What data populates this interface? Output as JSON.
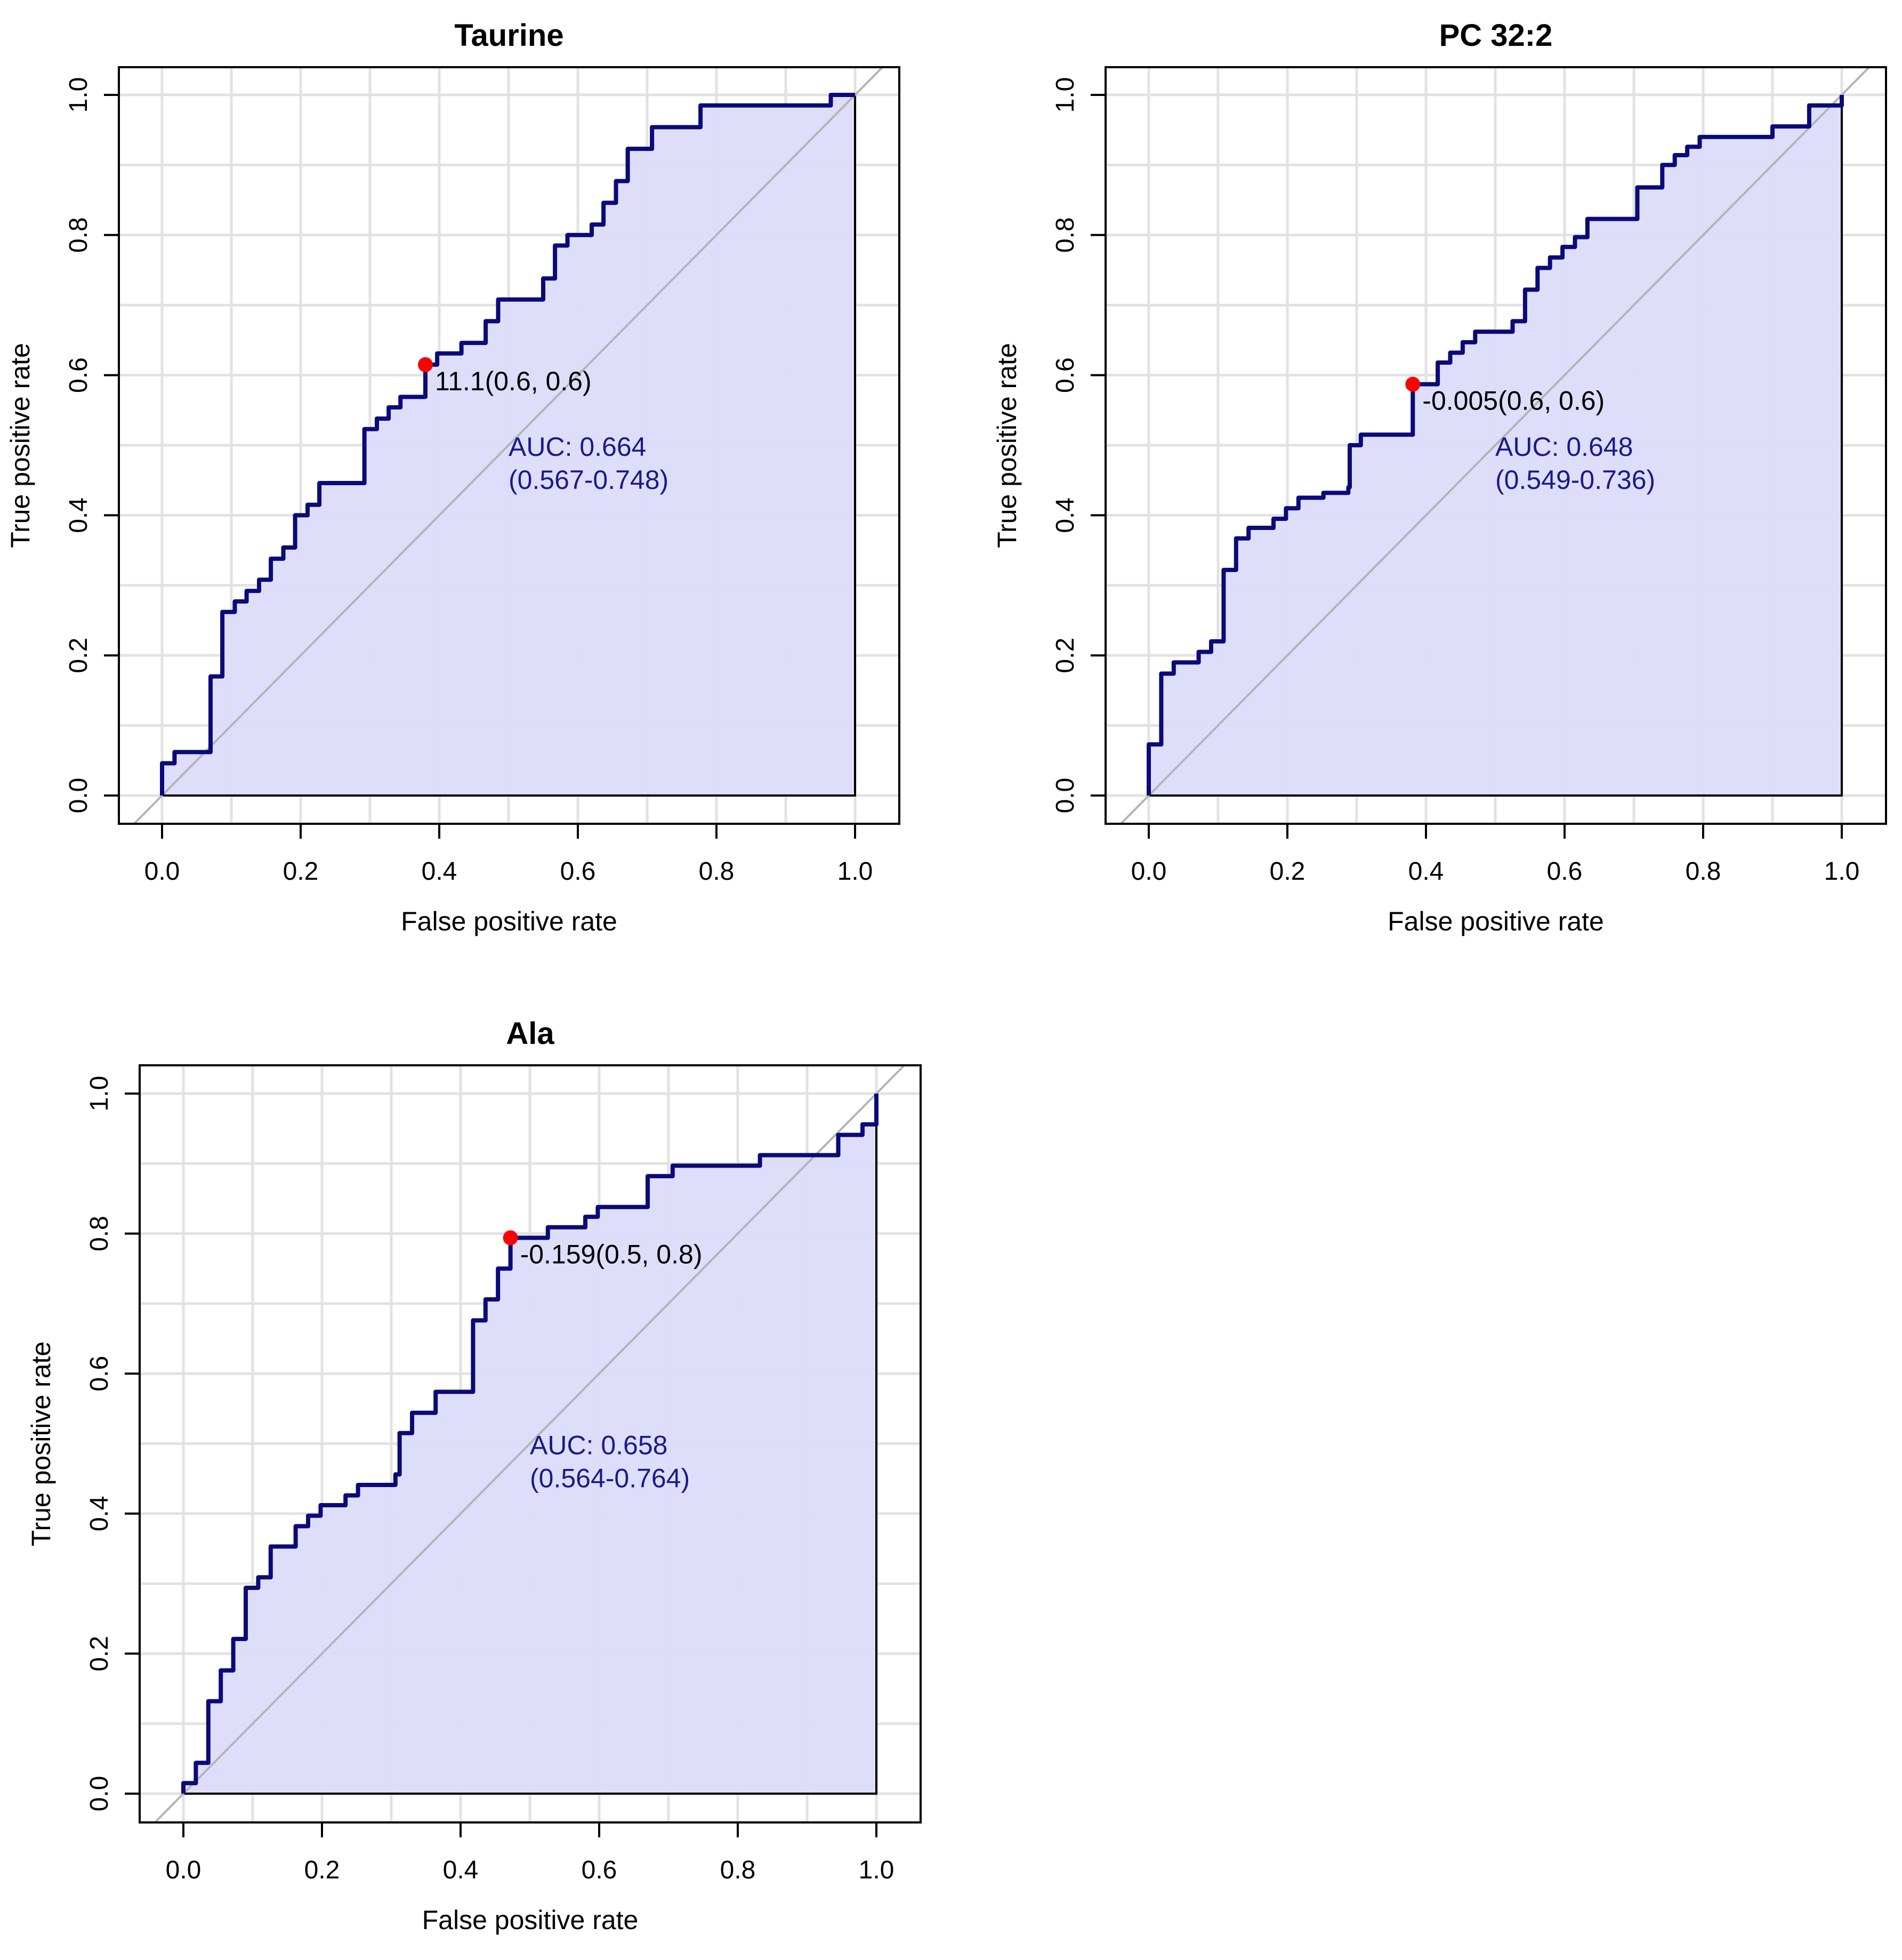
{
  "figure": {
    "type": "roc-panel-figure"
  },
  "colors": {
    "curve": "#0a0a7a",
    "fill": "#dcdcfa",
    "grid": "#e2e2e2",
    "diagonal": "#b4b4b4",
    "optimal_point": "#ff0000",
    "auc_text": "#1a1a8c",
    "axis": "#000000"
  },
  "chart_data": [
    {
      "type": "line",
      "title": "Taurine",
      "xlabel": "False positive rate",
      "ylabel": "True positive rate",
      "xlim": [
        0,
        1
      ],
      "ylim": [
        0,
        1
      ],
      "grid": true,
      "x_ticks": [
        "0.0",
        "0.2",
        "0.4",
        "0.6",
        "0.8",
        "1.0"
      ],
      "y_ticks": [
        "0.0",
        "0.2",
        "0.4",
        "0.6",
        "0.8",
        "1.0"
      ],
      "auc_label": "AUC: 0.664",
      "ci_label": "(0.567-0.748)",
      "optimal_point": {
        "fpr": 0.38,
        "tpr": 0.615,
        "label": "11.1(0.6, 0.6)"
      },
      "roc": [
        [
          0,
          0
        ],
        [
          0,
          0.046
        ],
        [
          0.018,
          0.046
        ],
        [
          0.018,
          0.062
        ],
        [
          0.07,
          0.062
        ],
        [
          0.07,
          0.17
        ],
        [
          0.087,
          0.17
        ],
        [
          0.087,
          0.262
        ],
        [
          0.105,
          0.262
        ],
        [
          0.105,
          0.277
        ],
        [
          0.122,
          0.277
        ],
        [
          0.122,
          0.292
        ],
        [
          0.14,
          0.292
        ],
        [
          0.14,
          0.308
        ],
        [
          0.157,
          0.308
        ],
        [
          0.157,
          0.338
        ],
        [
          0.175,
          0.338
        ],
        [
          0.175,
          0.354
        ],
        [
          0.192,
          0.354
        ],
        [
          0.192,
          0.4
        ],
        [
          0.21,
          0.4
        ],
        [
          0.21,
          0.415
        ],
        [
          0.227,
          0.415
        ],
        [
          0.227,
          0.446
        ],
        [
          0.292,
          0.446
        ],
        [
          0.292,
          0.523
        ],
        [
          0.31,
          0.523
        ],
        [
          0.31,
          0.538
        ],
        [
          0.327,
          0.538
        ],
        [
          0.327,
          0.554
        ],
        [
          0.344,
          0.554
        ],
        [
          0.344,
          0.569
        ],
        [
          0.38,
          0.569
        ],
        [
          0.38,
          0.615
        ],
        [
          0.397,
          0.615
        ],
        [
          0.397,
          0.631
        ],
        [
          0.432,
          0.631
        ],
        [
          0.432,
          0.646
        ],
        [
          0.467,
          0.646
        ],
        [
          0.467,
          0.677
        ],
        [
          0.485,
          0.677
        ],
        [
          0.485,
          0.708
        ],
        [
          0.55,
          0.708
        ],
        [
          0.55,
          0.738
        ],
        [
          0.567,
          0.738
        ],
        [
          0.567,
          0.785
        ],
        [
          0.585,
          0.785
        ],
        [
          0.585,
          0.8
        ],
        [
          0.62,
          0.8
        ],
        [
          0.62,
          0.815
        ],
        [
          0.637,
          0.815
        ],
        [
          0.637,
          0.846
        ],
        [
          0.655,
          0.846
        ],
        [
          0.655,
          0.877
        ],
        [
          0.672,
          0.877
        ],
        [
          0.672,
          0.923
        ],
        [
          0.707,
          0.923
        ],
        [
          0.707,
          0.954
        ],
        [
          0.777,
          0.954
        ],
        [
          0.777,
          0.985
        ],
        [
          0.965,
          0.985
        ],
        [
          0.965,
          1.0
        ],
        [
          1.0,
          1.0
        ]
      ]
    },
    {
      "type": "line",
      "title": "PC 32:2",
      "xlabel": "False positive rate",
      "ylabel": "True positive rate",
      "xlim": [
        0,
        1
      ],
      "ylim": [
        0,
        1
      ],
      "grid": true,
      "x_ticks": [
        "0.0",
        "0.2",
        "0.4",
        "0.6",
        "0.8",
        "1.0"
      ],
      "y_ticks": [
        "0.0",
        "0.2",
        "0.4",
        "0.6",
        "0.8",
        "1.0"
      ],
      "auc_label": "AUC: 0.648",
      "ci_label": "(0.549-0.736)",
      "optimal_point": {
        "fpr": 0.381,
        "tpr": 0.587,
        "label": "-0.005(0.6, 0.6)"
      },
      "roc": [
        [
          0,
          0
        ],
        [
          0,
          0.073
        ],
        [
          0.018,
          0.073
        ],
        [
          0.018,
          0.174
        ],
        [
          0.036,
          0.174
        ],
        [
          0.036,
          0.19
        ],
        [
          0.072,
          0.19
        ],
        [
          0.072,
          0.205
        ],
        [
          0.09,
          0.205
        ],
        [
          0.09,
          0.22
        ],
        [
          0.108,
          0.22
        ],
        [
          0.108,
          0.322
        ],
        [
          0.126,
          0.322
        ],
        [
          0.126,
          0.367
        ],
        [
          0.144,
          0.367
        ],
        [
          0.144,
          0.382
        ],
        [
          0.18,
          0.382
        ],
        [
          0.18,
          0.395
        ],
        [
          0.198,
          0.395
        ],
        [
          0.198,
          0.41
        ],
        [
          0.216,
          0.41
        ],
        [
          0.216,
          0.425
        ],
        [
          0.252,
          0.425
        ],
        [
          0.252,
          0.432
        ],
        [
          0.288,
          0.432
        ],
        [
          0.288,
          0.44
        ],
        [
          0.29,
          0.44
        ],
        [
          0.29,
          0.5
        ],
        [
          0.306,
          0.5
        ],
        [
          0.306,
          0.515
        ],
        [
          0.381,
          0.515
        ],
        [
          0.381,
          0.587
        ],
        [
          0.417,
          0.587
        ],
        [
          0.417,
          0.618
        ],
        [
          0.435,
          0.618
        ],
        [
          0.435,
          0.632
        ],
        [
          0.453,
          0.632
        ],
        [
          0.453,
          0.647
        ],
        [
          0.471,
          0.647
        ],
        [
          0.471,
          0.662
        ],
        [
          0.525,
          0.662
        ],
        [
          0.525,
          0.677
        ],
        [
          0.543,
          0.677
        ],
        [
          0.543,
          0.722
        ],
        [
          0.561,
          0.722
        ],
        [
          0.561,
          0.753
        ],
        [
          0.579,
          0.753
        ],
        [
          0.579,
          0.768
        ],
        [
          0.597,
          0.768
        ],
        [
          0.597,
          0.783
        ],
        [
          0.615,
          0.783
        ],
        [
          0.615,
          0.797
        ],
        [
          0.633,
          0.797
        ],
        [
          0.633,
          0.823
        ],
        [
          0.705,
          0.823
        ],
        [
          0.705,
          0.868
        ],
        [
          0.741,
          0.868
        ],
        [
          0.741,
          0.9
        ],
        [
          0.759,
          0.9
        ],
        [
          0.759,
          0.914
        ],
        [
          0.777,
          0.914
        ],
        [
          0.777,
          0.926
        ],
        [
          0.795,
          0.926
        ],
        [
          0.795,
          0.94
        ],
        [
          0.9,
          0.94
        ],
        [
          0.9,
          0.955
        ],
        [
          0.953,
          0.955
        ],
        [
          0.953,
          0.985
        ],
        [
          1.0,
          0.985
        ],
        [
          1.0,
          1.0
        ]
      ]
    },
    {
      "type": "line",
      "title": "Ala",
      "xlabel": "False positive rate",
      "ylabel": "True positive rate",
      "xlim": [
        0,
        1
      ],
      "ylim": [
        0,
        1
      ],
      "grid": true,
      "x_ticks": [
        "0.0",
        "0.2",
        "0.4",
        "0.6",
        "0.8",
        "1.0"
      ],
      "y_ticks": [
        "0.0",
        "0.2",
        "0.4",
        "0.6",
        "0.8",
        "1.0"
      ],
      "auc_label": "AUC: 0.658",
      "ci_label": "(0.564-0.764)",
      "optimal_point": {
        "fpr": 0.472,
        "tpr": 0.794,
        "label": "-0.159(0.5, 0.8)"
      },
      "roc": [
        [
          0,
          0
        ],
        [
          0,
          0.015
        ],
        [
          0.018,
          0.015
        ],
        [
          0.018,
          0.044
        ],
        [
          0.036,
          0.044
        ],
        [
          0.036,
          0.132
        ],
        [
          0.054,
          0.132
        ],
        [
          0.054,
          0.176
        ],
        [
          0.072,
          0.176
        ],
        [
          0.072,
          0.221
        ],
        [
          0.09,
          0.221
        ],
        [
          0.09,
          0.294
        ],
        [
          0.108,
          0.294
        ],
        [
          0.108,
          0.309
        ],
        [
          0.126,
          0.309
        ],
        [
          0.126,
          0.353
        ],
        [
          0.162,
          0.353
        ],
        [
          0.162,
          0.382
        ],
        [
          0.18,
          0.382
        ],
        [
          0.18,
          0.397
        ],
        [
          0.198,
          0.397
        ],
        [
          0.198,
          0.412
        ],
        [
          0.234,
          0.412
        ],
        [
          0.234,
          0.426
        ],
        [
          0.252,
          0.426
        ],
        [
          0.252,
          0.441
        ],
        [
          0.306,
          0.441
        ],
        [
          0.306,
          0.456
        ],
        [
          0.312,
          0.456
        ],
        [
          0.312,
          0.515
        ],
        [
          0.33,
          0.515
        ],
        [
          0.33,
          0.544
        ],
        [
          0.364,
          0.544
        ],
        [
          0.364,
          0.574
        ],
        [
          0.418,
          0.574
        ],
        [
          0.418,
          0.676
        ],
        [
          0.436,
          0.676
        ],
        [
          0.436,
          0.706
        ],
        [
          0.454,
          0.706
        ],
        [
          0.454,
          0.75
        ],
        [
          0.472,
          0.75
        ],
        [
          0.472,
          0.794
        ],
        [
          0.526,
          0.794
        ],
        [
          0.526,
          0.809
        ],
        [
          0.58,
          0.809
        ],
        [
          0.58,
          0.824
        ],
        [
          0.598,
          0.824
        ],
        [
          0.598,
          0.838
        ],
        [
          0.67,
          0.838
        ],
        [
          0.67,
          0.882
        ],
        [
          0.706,
          0.882
        ],
        [
          0.706,
          0.897
        ],
        [
          0.832,
          0.897
        ],
        [
          0.832,
          0.912
        ],
        [
          0.945,
          0.912
        ],
        [
          0.945,
          0.941
        ],
        [
          0.98,
          0.941
        ],
        [
          0.98,
          0.956
        ],
        [
          1.0,
          0.956
        ],
        [
          1.0,
          1.0
        ]
      ]
    }
  ]
}
